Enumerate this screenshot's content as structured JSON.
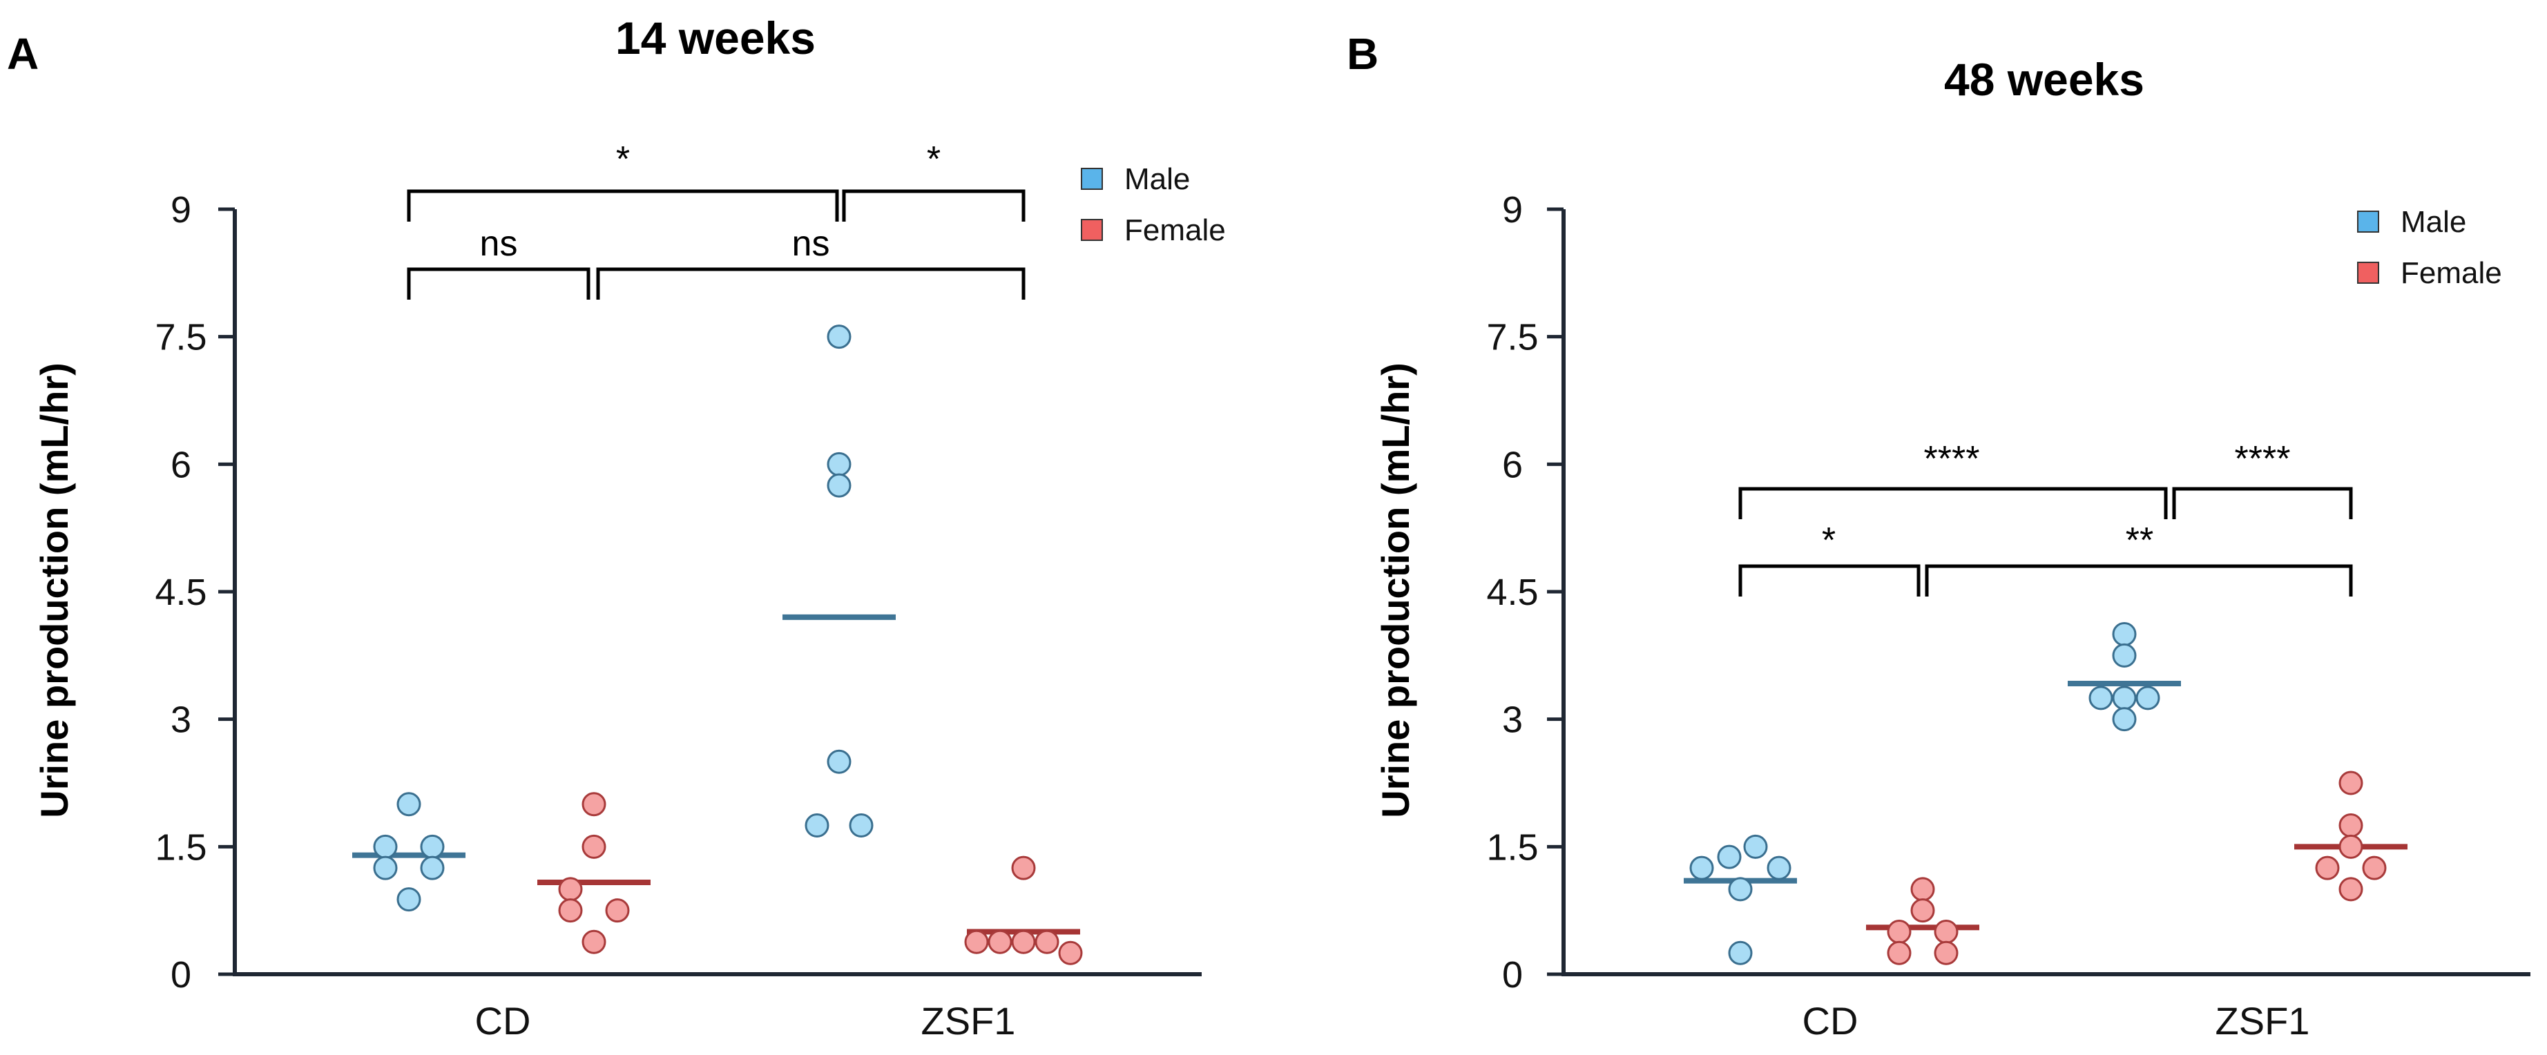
{
  "colors": {
    "male_fill": "#a9dcf5",
    "male_stroke": "#3a6f8f",
    "male_mean": "#3f7596",
    "female_fill": "#f5a3a3",
    "female_stroke": "#a83a3a",
    "female_mean": "#a63535",
    "legend_male": "#5ab4ea",
    "legend_female": "#f06060",
    "axis": "#1f2733",
    "bracket": "#000000"
  },
  "chart_data": [
    {
      "panel": "A",
      "type": "scatter",
      "title": "14 weeks",
      "ylabel": "Urine production (mL/hr)",
      "xlabel": "",
      "ylim": [
        0,
        9
      ],
      "yticks": [
        0,
        1.5,
        3,
        4.5,
        6,
        7.5,
        9
      ],
      "ytick_labels": [
        "0",
        "1.5",
        "3",
        "4.5",
        "6",
        "7.5",
        "9"
      ],
      "categories": [
        "CD",
        "ZSF1"
      ],
      "legend": [
        {
          "name": "Male",
          "color_key": "legend_male"
        },
        {
          "name": "Female",
          "color_key": "legend_female"
        }
      ],
      "legend_position": "top-right",
      "series": [
        {
          "name": "Male",
          "category": "CD",
          "points": [
            2.0,
            1.5,
            1.5,
            1.25,
            1.25,
            0.88
          ],
          "mean": 1.4
        },
        {
          "name": "Female",
          "category": "CD",
          "points": [
            2.0,
            1.5,
            1.0,
            0.75,
            0.75,
            0.38
          ],
          "mean": 1.08
        },
        {
          "name": "Male",
          "category": "ZSF1",
          "points": [
            7.5,
            6.0,
            5.75,
            2.5,
            1.75,
            1.75
          ],
          "mean": 4.2
        },
        {
          "name": "Female",
          "category": "ZSF1",
          "points": [
            1.25,
            0.38,
            0.38,
            0.38,
            0.38,
            0.25
          ],
          "mean": 0.5
        }
      ],
      "comparisons": [
        {
          "from": "CD Male",
          "to": "ZSF1 Male",
          "label": "*"
        },
        {
          "from": "ZSF1 Male",
          "to": "ZSF1 Female",
          "label": "*"
        },
        {
          "from": "CD Male",
          "to": "CD Female",
          "label": "ns"
        },
        {
          "from": "CD Female",
          "to": "ZSF1 Female",
          "label": "ns"
        }
      ]
    },
    {
      "panel": "B",
      "type": "scatter",
      "title": "48 weeks",
      "ylabel": "Urine production (mL/hr)",
      "xlabel": "",
      "ylim": [
        0,
        9
      ],
      "yticks": [
        0,
        1.5,
        3,
        4.5,
        6,
        7.5,
        9
      ],
      "ytick_labels": [
        "0",
        "1.5",
        "3",
        "4.5",
        "6",
        "7.5",
        "9"
      ],
      "categories": [
        "CD",
        "ZSF1"
      ],
      "legend": [
        {
          "name": "Male",
          "color_key": "legend_male"
        },
        {
          "name": "Female",
          "color_key": "legend_female"
        }
      ],
      "legend_position": "top-right",
      "series": [
        {
          "name": "Male",
          "category": "CD",
          "points": [
            1.5,
            1.38,
            1.25,
            1.25,
            1.0,
            0.25
          ],
          "mean": 1.1
        },
        {
          "name": "Female",
          "category": "CD",
          "points": [
            1.0,
            0.75,
            0.5,
            0.5,
            0.25,
            0.25
          ],
          "mean": 0.55
        },
        {
          "name": "Male",
          "category": "ZSF1",
          "points": [
            4.0,
            3.75,
            3.25,
            3.25,
            3.25,
            3.0
          ],
          "mean": 3.42
        },
        {
          "name": "Female",
          "category": "ZSF1",
          "points": [
            2.25,
            1.75,
            1.5,
            1.25,
            1.25,
            1.0
          ],
          "mean": 1.5
        }
      ],
      "comparisons": [
        {
          "from": "CD Male",
          "to": "ZSF1 Male",
          "label": "****"
        },
        {
          "from": "ZSF1 Male",
          "to": "ZSF1 Female",
          "label": "****"
        },
        {
          "from": "CD Male",
          "to": "CD Female",
          "label": "*"
        },
        {
          "from": "CD Female",
          "to": "ZSF1 Female",
          "label": "**"
        }
      ]
    }
  ]
}
